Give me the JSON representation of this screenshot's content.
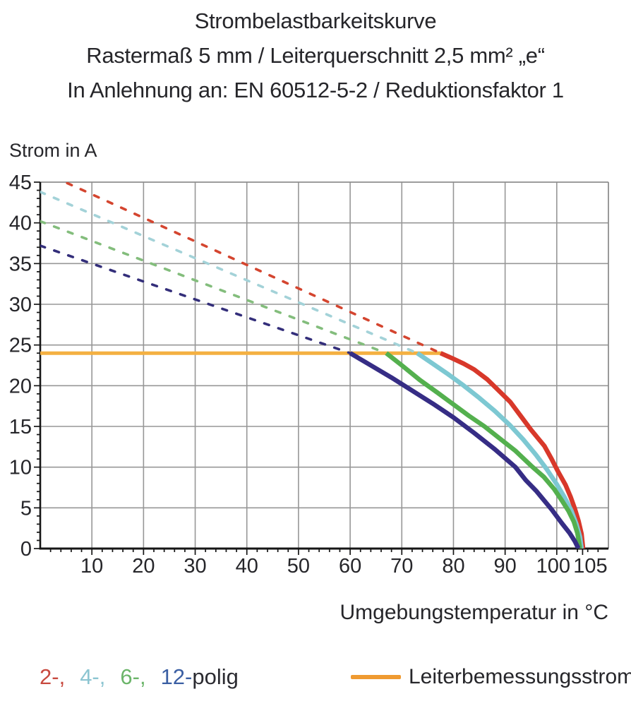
{
  "title": {
    "line1": "Strombelastbarkeitskurve",
    "line2": "Rastermaß 5 mm / Leiterquerschnitt 2,5 mm² „e“",
    "line3": "In Anlehnung an: EN 60512-5-2 / Reduktionsfaktor 1"
  },
  "chart_data": {
    "type": "line",
    "title": "Strombelastbarkeitskurve",
    "xlabel": "Umgebungstemperatur in °C",
    "ylabel": "Strom in A",
    "xlim": [
      0,
      110
    ],
    "ylim": [
      0,
      45
    ],
    "grid": {
      "on": true,
      "color": "#979797",
      "frame_color": "#8e8e8e",
      "x_gridlines": [
        10,
        20,
        30,
        40,
        50,
        60,
        70,
        80,
        90,
        100
      ],
      "y_gridlines": [
        5,
        10,
        15,
        20,
        25,
        30,
        35,
        40
      ]
    },
    "axis_color": "#161616",
    "x_minor_step": 2,
    "y_minor_step": 1,
    "x_major_ticks": [
      {
        "value": 10,
        "label": "10",
        "dx": 0
      },
      {
        "value": 20,
        "label": "20",
        "dx": 0
      },
      {
        "value": 30,
        "label": "30",
        "dx": 0
      },
      {
        "value": 40,
        "label": "40",
        "dx": 0
      },
      {
        "value": 50,
        "label": "50",
        "dx": 0
      },
      {
        "value": 60,
        "label": "60",
        "dx": 0
      },
      {
        "value": 70,
        "label": "70",
        "dx": 0
      },
      {
        "value": 80,
        "label": "80",
        "dx": 0
      },
      {
        "value": 90,
        "label": "90",
        "dx": 0
      },
      {
        "value": 100,
        "label": "100",
        "dx": -5
      },
      {
        "value": 105,
        "label": "105",
        "dx": 11
      }
    ],
    "y_major_ticks": [
      {
        "value": 0,
        "label": "0"
      },
      {
        "value": 5,
        "label": "5"
      },
      {
        "value": 10,
        "label": "10"
      },
      {
        "value": 15,
        "label": "15"
      },
      {
        "value": 20,
        "label": "20"
      },
      {
        "value": 25,
        "label": "25"
      },
      {
        "value": 30,
        "label": "30"
      },
      {
        "value": 35,
        "label": "35"
      },
      {
        "value": 40,
        "label": "40"
      },
      {
        "value": 45,
        "label": "45"
      }
    ],
    "series": [
      {
        "name": "Leiterbemessungsstrom",
        "style": "solid",
        "color": "#f4b041",
        "width": 5,
        "points": [
          [
            0,
            24
          ],
          [
            77.6,
            24
          ]
        ]
      },
      {
        "name": "2-polig-grenzlinie",
        "style": "dashed",
        "color": "#d4452f",
        "width": 3.6,
        "points": [
          [
            0,
            46.4
          ],
          [
            77.5,
            24
          ]
        ]
      },
      {
        "name": "4-polig-grenzlinie",
        "style": "dashed",
        "color": "#a3d2d8",
        "width": 3.6,
        "points": [
          [
            0,
            43.8
          ],
          [
            73,
            24
          ]
        ]
      },
      {
        "name": "6-polig-grenzlinie",
        "style": "dashed",
        "color": "#83bd7c",
        "width": 3.6,
        "points": [
          [
            0,
            40.2
          ],
          [
            67,
            24
          ]
        ]
      },
      {
        "name": "12-polig-grenzlinie",
        "style": "dashed",
        "color": "#332e7a",
        "width": 3.6,
        "points": [
          [
            0,
            37.2
          ],
          [
            60,
            24
          ]
        ]
      },
      {
        "name": "2-polig",
        "style": "solid",
        "color": "#d8382a",
        "width": 6.5,
        "points": [
          [
            77.5,
            24
          ],
          [
            80,
            23.3
          ],
          [
            82,
            22.7
          ],
          [
            84,
            22.0
          ],
          [
            86.5,
            20.8
          ],
          [
            88.6,
            19.5
          ],
          [
            91,
            18.0
          ],
          [
            93,
            16.3
          ],
          [
            95,
            14.6
          ],
          [
            97.6,
            12.6
          ],
          [
            99,
            11.0
          ],
          [
            100.3,
            9.4
          ],
          [
            101.7,
            7.8
          ],
          [
            102.7,
            6.3
          ],
          [
            103.5,
            4.9
          ],
          [
            104.2,
            3.4
          ],
          [
            104.8,
            1.8
          ],
          [
            105.1,
            0
          ]
        ]
      },
      {
        "name": "4-polig",
        "style": "solid",
        "color": "#7dc8d2",
        "width": 6.5,
        "points": [
          [
            73,
            24
          ],
          [
            76,
            22.7
          ],
          [
            79,
            21.4
          ],
          [
            82,
            20.0
          ],
          [
            85,
            18.5
          ],
          [
            88,
            16.9
          ],
          [
            91,
            15.1
          ],
          [
            93.5,
            13.4
          ],
          [
            96,
            11.5
          ],
          [
            98,
            9.8
          ],
          [
            100,
            7.9
          ],
          [
            101.5,
            6.3
          ],
          [
            102.8,
            4.7
          ],
          [
            103.8,
            3.0
          ],
          [
            104.5,
            1.4
          ],
          [
            104.8,
            0
          ]
        ]
      },
      {
        "name": "6-polig",
        "style": "solid",
        "color": "#54b04e",
        "width": 6.5,
        "points": [
          [
            67,
            24
          ],
          [
            70,
            22.5
          ],
          [
            73.5,
            20.7
          ],
          [
            77,
            19.1
          ],
          [
            80,
            17.7
          ],
          [
            83,
            16.3
          ],
          [
            86,
            15.0
          ],
          [
            89,
            13.5
          ],
          [
            92,
            12.0
          ],
          [
            95,
            10.2
          ],
          [
            97.5,
            8.8
          ],
          [
            99.5,
            7.3
          ],
          [
            101,
            5.9
          ],
          [
            102.3,
            4.6
          ],
          [
            103.3,
            3.3
          ],
          [
            104,
            1.9
          ],
          [
            104.5,
            0
          ]
        ]
      },
      {
        "name": "12-polig",
        "style": "solid",
        "color": "#362d85",
        "width": 6.5,
        "points": [
          [
            60,
            24
          ],
          [
            64,
            22.5
          ],
          [
            68,
            21.0
          ],
          [
            72,
            19.4
          ],
          [
            76,
            17.8
          ],
          [
            80,
            16.1
          ],
          [
            84,
            14.2
          ],
          [
            88,
            12.2
          ],
          [
            92,
            10.0
          ],
          [
            94,
            8.4
          ],
          [
            96,
            7.1
          ],
          [
            99,
            4.8
          ],
          [
            101,
            3.1
          ],
          [
            102.5,
            1.9
          ],
          [
            103.5,
            0.9
          ],
          [
            104.2,
            0
          ]
        ]
      }
    ]
  },
  "legend": {
    "pole_items": [
      {
        "label": "2-,",
        "color": "#c8493f"
      },
      {
        "label": "4-,",
        "color": "#8cc5d1"
      },
      {
        "label": "6-,",
        "color": "#6cb56a"
      },
      {
        "label": "12-",
        "color": "#3b5fa3"
      }
    ],
    "pole_suffix": {
      "label": "polig",
      "color": "#2b2b31"
    },
    "rated_current": {
      "label": "Leiterbemessungsstrom",
      "swatch_color": "#ef9a31"
    }
  }
}
